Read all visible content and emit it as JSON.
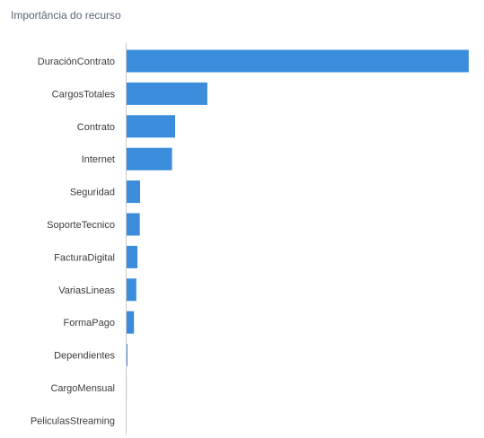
{
  "title": "Importância do recurso",
  "chart_data": {
    "type": "bar",
    "orientation": "horizontal",
    "title": "Importância do recurso",
    "xlabel": "",
    "ylabel": "",
    "categories": [
      "DuraciónContrato",
      "CargosTotales",
      "Contrato",
      "Internet",
      "Seguridad",
      "SoporteTecnico",
      "FacturaDigital",
      "VariasLineas",
      "FormaPago",
      "Dependientes",
      "CargoMensual",
      "PeliculasStreaming"
    ],
    "values": [
      100,
      23.8,
      14.4,
      13.5,
      4.2,
      4.1,
      3.4,
      3.1,
      2.4,
      0.5,
      0.3,
      0
    ],
    "xlim": [
      0,
      100
    ],
    "bar_color": "#3b8ddb",
    "axis_color": "#c8c8c8",
    "grid": false,
    "legend": "none"
  }
}
